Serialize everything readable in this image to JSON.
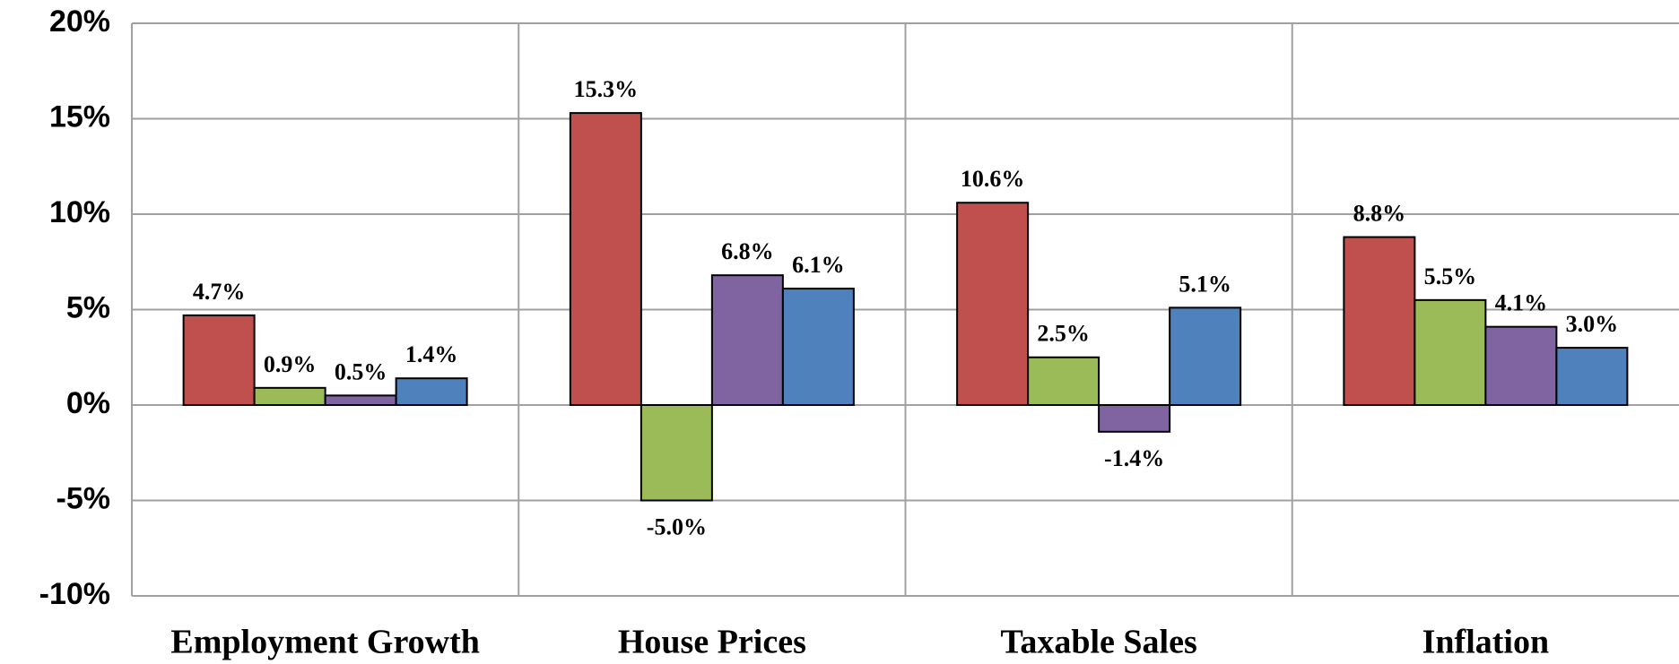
{
  "chart_data": {
    "type": "bar",
    "categories": [
      "Employment Growth",
      "House Prices",
      "Taxable Sales",
      "Inflation"
    ],
    "series": [
      {
        "color": "#c0504d",
        "values": [
          4.7,
          15.3,
          10.6,
          8.8
        ],
        "value_labels": [
          "4.7%",
          "15.3%",
          "10.6%",
          "8.8%"
        ]
      },
      {
        "color": "#9bbb59",
        "values": [
          0.9,
          -5.0,
          2.5,
          5.5
        ],
        "value_labels": [
          "0.9%",
          "-5.0%",
          "2.5%",
          "5.5%"
        ]
      },
      {
        "color": "#8064a2",
        "values": [
          0.5,
          6.8,
          -1.4,
          4.1
        ],
        "value_labels": [
          "0.5%",
          "6.8%",
          "-1.4%",
          "4.1%"
        ]
      },
      {
        "color": "#4f81bd",
        "values": [
          1.4,
          6.1,
          5.1,
          3.0
        ],
        "value_labels": [
          "1.4%",
          "6.1%",
          "5.1%",
          "3.0%"
        ]
      }
    ],
    "ylim": [
      -10,
      20
    ],
    "yticks": [
      {
        "value": -10,
        "label": "-10%"
      },
      {
        "value": -5,
        "label": "-5%"
      },
      {
        "value": 0,
        "label": "0%"
      },
      {
        "value": 5,
        "label": "5%"
      },
      {
        "value": 10,
        "label": "10%"
      },
      {
        "value": 15,
        "label": "15%"
      },
      {
        "value": 20,
        "label": "20%"
      }
    ],
    "grid": true
  }
}
